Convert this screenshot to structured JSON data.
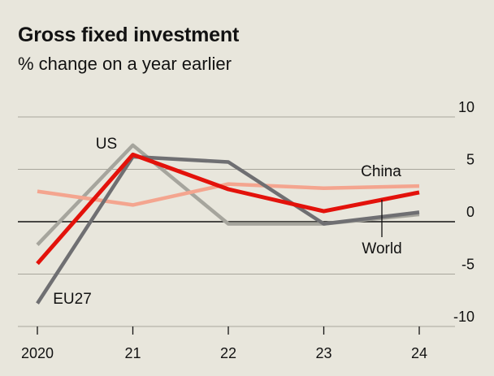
{
  "header": {
    "title": "Gross fixed investment",
    "subtitle": "% change on a year earlier"
  },
  "colors": {
    "background": "#e8e6dc",
    "grid": "#a8a69c",
    "zero_line": "#121212",
    "World": "#e3120b",
    "EU27": "#6f6f72",
    "US": "#a6a59d",
    "China": "#f4a58f"
  },
  "chart_data": {
    "type": "line",
    "title": "Gross fixed investment",
    "subtitle": "% change on a year earlier",
    "x": [
      2020,
      2021,
      2022,
      2023,
      2024
    ],
    "x_tick_labels": [
      "2020",
      "21",
      "22",
      "23",
      "24"
    ],
    "ylim": [
      -10,
      10
    ],
    "y_ticks": [
      10,
      5,
      0,
      -5,
      -10
    ],
    "y_tick_labels": [
      "10",
      "5",
      "0",
      "-5",
      "-10"
    ],
    "grid": true,
    "y_axis_position": "right",
    "series": [
      {
        "name": "US",
        "key": "US",
        "values": [
          -2.2,
          7.3,
          -0.2,
          -0.2,
          0.7
        ]
      },
      {
        "name": "China",
        "key": "China",
        "values": [
          2.9,
          1.6,
          3.6,
          3.2,
          3.4
        ]
      },
      {
        "name": "EU27",
        "key": "EU27",
        "values": [
          -7.8,
          6.2,
          5.7,
          -0.2,
          0.9
        ]
      },
      {
        "name": "World",
        "key": "World",
        "values": [
          -4.0,
          6.4,
          3.1,
          1.0,
          2.8
        ]
      }
    ]
  }
}
